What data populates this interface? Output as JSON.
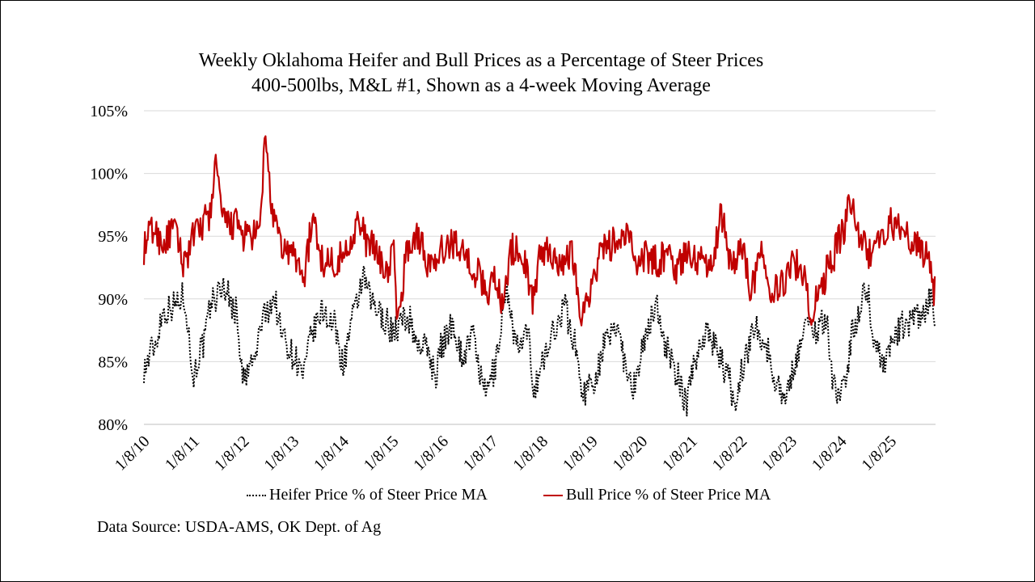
{
  "chart_data": {
    "type": "line",
    "title": "Weekly Oklahoma Heifer and Bull Prices as a Percentage of Steer Prices",
    "subtitle": "400-500lbs, M&L #1, Shown as a 4-week Moving Average",
    "ylim": [
      80,
      105
    ],
    "yticks": [
      "80%",
      "85%",
      "90%",
      "95%",
      "100%",
      "105%"
    ],
    "ytick_values": [
      80,
      85,
      90,
      95,
      100,
      105
    ],
    "xticks": [
      "1/8/10",
      "1/8/11",
      "1/8/12",
      "1/8/13",
      "1/8/14",
      "1/8/15",
      "1/8/16",
      "1/8/17",
      "1/8/18",
      "1/8/19",
      "1/8/20",
      "1/8/21",
      "1/8/22",
      "1/8/23",
      "1/8/24",
      "1/8/25"
    ],
    "xlim": [
      2010.0,
      2025.9
    ],
    "grid": true,
    "legend_position": "bottom",
    "series": [
      {
        "name": "Heifer Price % of Steer Price MA",
        "color": "#000000",
        "style": "dotted",
        "anchors": [
          [
            2010.0,
            84.5
          ],
          [
            2010.2,
            86.2
          ],
          [
            2010.4,
            89
          ],
          [
            2010.6,
            89.5
          ],
          [
            2010.8,
            90.2
          ],
          [
            2011.0,
            84
          ],
          [
            2011.15,
            86
          ],
          [
            2011.4,
            90
          ],
          [
            2011.6,
            91
          ],
          [
            2011.85,
            89
          ],
          [
            2012.0,
            83.5
          ],
          [
            2012.2,
            85
          ],
          [
            2012.4,
            88.5
          ],
          [
            2012.6,
            90
          ],
          [
            2012.8,
            87
          ],
          [
            2013.0,
            85.5
          ],
          [
            2013.2,
            84
          ],
          [
            2013.4,
            87.5
          ],
          [
            2013.6,
            89
          ],
          [
            2013.8,
            88
          ],
          [
            2014.0,
            85
          ],
          [
            2014.2,
            88.5
          ],
          [
            2014.4,
            91.5
          ],
          [
            2014.6,
            89.5
          ],
          [
            2014.8,
            88.5
          ],
          [
            2015.0,
            87.5
          ],
          [
            2015.3,
            88.5
          ],
          [
            2015.5,
            86.5
          ],
          [
            2015.7,
            86
          ],
          [
            2015.85,
            84
          ],
          [
            2016.0,
            86.5
          ],
          [
            2016.2,
            88
          ],
          [
            2016.4,
            85.5
          ],
          [
            2016.6,
            87
          ],
          [
            2016.85,
            82.5
          ],
          [
            2017.0,
            84
          ],
          [
            2017.3,
            90.5
          ],
          [
            2017.5,
            86
          ],
          [
            2017.7,
            87
          ],
          [
            2017.85,
            83
          ],
          [
            2018.0,
            85
          ],
          [
            2018.3,
            88
          ],
          [
            2018.45,
            89.5
          ],
          [
            2018.6,
            87
          ],
          [
            2018.85,
            82.5
          ],
          [
            2019.0,
            83.5
          ],
          [
            2019.3,
            86.5
          ],
          [
            2019.5,
            88
          ],
          [
            2019.7,
            84.5
          ],
          [
            2019.85,
            83
          ],
          [
            2020.0,
            86
          ],
          [
            2020.3,
            89.5
          ],
          [
            2020.5,
            86
          ],
          [
            2020.7,
            84
          ],
          [
            2020.9,
            81.5
          ],
          [
            2021.0,
            84.5
          ],
          [
            2021.3,
            87.5
          ],
          [
            2021.5,
            86
          ],
          [
            2021.7,
            84
          ],
          [
            2021.9,
            81.5
          ],
          [
            2022.0,
            84.5
          ],
          [
            2022.3,
            88
          ],
          [
            2022.5,
            86
          ],
          [
            2022.7,
            83.5
          ],
          [
            2022.9,
            82
          ],
          [
            2023.0,
            84
          ],
          [
            2023.3,
            88
          ],
          [
            2023.5,
            87.5
          ],
          [
            2023.7,
            88.5
          ],
          [
            2023.85,
            83
          ],
          [
            2024.0,
            82.5
          ],
          [
            2024.3,
            88
          ],
          [
            2024.5,
            91
          ],
          [
            2024.7,
            86
          ],
          [
            2024.9,
            85
          ],
          [
            2025.0,
            86.5
          ],
          [
            2025.3,
            88
          ],
          [
            2025.6,
            88.5
          ],
          [
            2025.8,
            90
          ],
          [
            2025.9,
            88
          ]
        ],
        "amplitude": 1.2
      },
      {
        "name": "Bull Price % of Steer Price MA",
        "color": "#c00000",
        "style": "solid",
        "anchors": [
          [
            2010.0,
            94
          ],
          [
            2010.15,
            95.5
          ],
          [
            2010.4,
            94.5
          ],
          [
            2010.6,
            95.5
          ],
          [
            2010.8,
            93
          ],
          [
            2011.0,
            95
          ],
          [
            2011.3,
            96.5
          ],
          [
            2011.45,
            100.5
          ],
          [
            2011.6,
            96
          ],
          [
            2011.85,
            96
          ],
          [
            2012.0,
            95
          ],
          [
            2012.3,
            95
          ],
          [
            2012.45,
            102.5
          ],
          [
            2012.6,
            96
          ],
          [
            2012.8,
            94
          ],
          [
            2013.0,
            93.5
          ],
          [
            2013.2,
            92
          ],
          [
            2013.4,
            96
          ],
          [
            2013.6,
            93
          ],
          [
            2013.85,
            93
          ],
          [
            2014.0,
            93.5
          ],
          [
            2014.3,
            96
          ],
          [
            2014.5,
            94.5
          ],
          [
            2014.7,
            93.5
          ],
          [
            2014.9,
            92
          ],
          [
            2015.0,
            94
          ],
          [
            2015.1,
            88.5
          ],
          [
            2015.3,
            94
          ],
          [
            2015.5,
            95
          ],
          [
            2015.7,
            93
          ],
          [
            2015.9,
            92.5
          ],
          [
            2016.0,
            94
          ],
          [
            2016.3,
            94.5
          ],
          [
            2016.5,
            93
          ],
          [
            2016.7,
            92
          ],
          [
            2016.9,
            90.5
          ],
          [
            2017.0,
            92
          ],
          [
            2017.2,
            90
          ],
          [
            2017.4,
            94
          ],
          [
            2017.6,
            93.5
          ],
          [
            2017.8,
            90
          ],
          [
            2018.0,
            94
          ],
          [
            2018.2,
            93.5
          ],
          [
            2018.4,
            93
          ],
          [
            2018.6,
            93.5
          ],
          [
            2018.8,
            89
          ],
          [
            2019.0,
            91
          ],
          [
            2019.2,
            94
          ],
          [
            2019.5,
            94.5
          ],
          [
            2019.7,
            95
          ],
          [
            2019.9,
            93
          ],
          [
            2020.0,
            93.5
          ],
          [
            2020.3,
            93
          ],
          [
            2020.5,
            93.5
          ],
          [
            2020.7,
            92.5
          ],
          [
            2020.9,
            93.5
          ],
          [
            2021.0,
            93.5
          ],
          [
            2021.2,
            93
          ],
          [
            2021.4,
            93
          ],
          [
            2021.6,
            96.5
          ],
          [
            2021.8,
            93
          ],
          [
            2022.0,
            94
          ],
          [
            2022.2,
            91
          ],
          [
            2022.4,
            93.5
          ],
          [
            2022.6,
            91
          ],
          [
            2022.8,
            91
          ],
          [
            2023.0,
            93
          ],
          [
            2023.2,
            92.5
          ],
          [
            2023.4,
            89
          ],
          [
            2023.6,
            91
          ],
          [
            2023.8,
            93
          ],
          [
            2024.0,
            95
          ],
          [
            2024.2,
            97.5
          ],
          [
            2024.4,
            95
          ],
          [
            2024.6,
            93.5
          ],
          [
            2024.8,
            95
          ],
          [
            2025.0,
            96
          ],
          [
            2025.3,
            95
          ],
          [
            2025.5,
            94.5
          ],
          [
            2025.7,
            93.5
          ],
          [
            2025.9,
            90.5
          ]
        ],
        "amplitude": 1.3
      }
    ]
  },
  "source": "Data Source: USDA-AMS, OK Dept. of Ag"
}
